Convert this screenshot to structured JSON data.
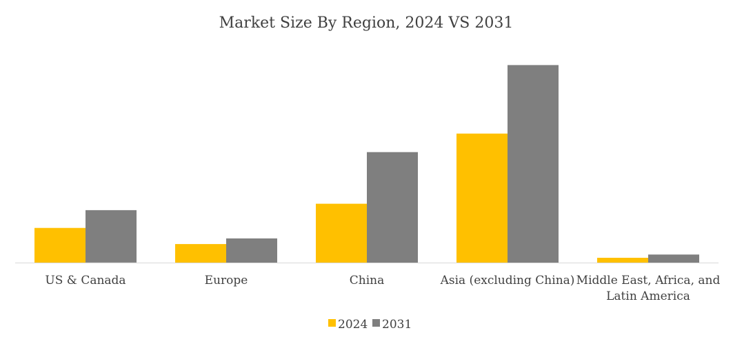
{
  "chart_data": {
    "type": "bar",
    "title": "Market Size By Region, 2024 VS 2031",
    "xlabel": "",
    "ylabel": "",
    "categories": [
      [
        "US & Canada"
      ],
      [
        "Europe"
      ],
      [
        "China"
      ],
      [
        "Asia (excluding China)"
      ],
      [
        "Middle East, Africa, and",
        "Latin America"
      ]
    ],
    "series": [
      {
        "name": "2024",
        "color": "#FFC000",
        "values": [
          43,
          23,
          73,
          160,
          6
        ]
      },
      {
        "name": "2031",
        "color": "#7F7F7F",
        "values": [
          65,
          30,
          137,
          245,
          10
        ]
      }
    ],
    "ylim": [
      0,
      300
    ],
    "grid": false,
    "y_axis_visible": false,
    "legend_position": "bottom"
  }
}
